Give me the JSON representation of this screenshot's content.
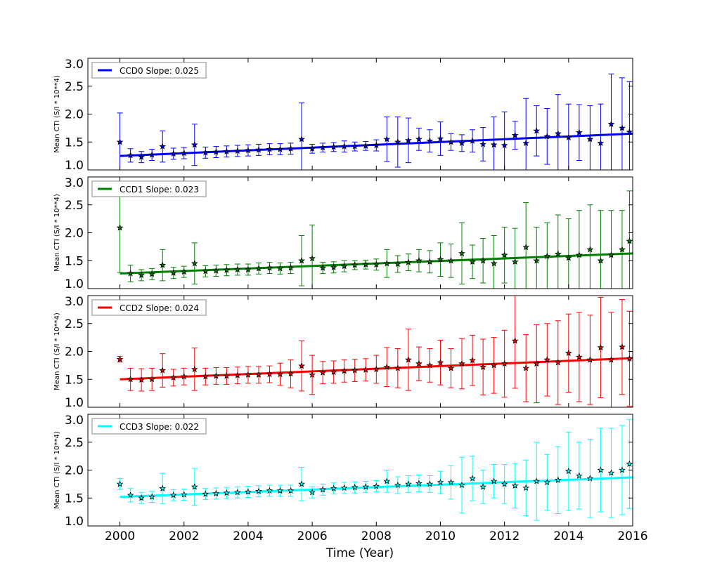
{
  "chart_data": {
    "type": "scatter",
    "xlabel": "Time (Year)",
    "ylabel": "Mean CTI (S/I * 10**4)",
    "xlim": [
      1999,
      2016
    ],
    "ylim": [
      1.0,
      3.0
    ],
    "xticks": [
      "2000",
      "2002",
      "2004",
      "2006",
      "2008",
      "2010",
      "2012",
      "2014",
      "2016"
    ],
    "yticks": [
      "1.0",
      "1.5",
      "2.0",
      "2.5",
      "3.0"
    ],
    "legend_position": "top-left",
    "marker_color": "#000000",
    "x": [
      2000.0,
      2000.33,
      2000.67,
      2001.0,
      2001.33,
      2001.67,
      2002.0,
      2002.33,
      2002.67,
      2003.0,
      2003.33,
      2003.67,
      2004.0,
      2004.33,
      2004.67,
      2005.0,
      2005.33,
      2005.67,
      2006.0,
      2006.33,
      2006.67,
      2007.0,
      2007.33,
      2007.67,
      2008.0,
      2008.33,
      2008.67,
      2009.0,
      2009.33,
      2009.67,
      2010.0,
      2010.33,
      2010.67,
      2011.0,
      2011.33,
      2011.67,
      2012.0,
      2012.33,
      2012.67,
      2013.0,
      2013.33,
      2013.67,
      2014.0,
      2014.33,
      2014.67,
      2015.0,
      2015.33,
      2015.67,
      2015.9
    ],
    "series": [
      {
        "name": "CCD0 Slope: 0.025",
        "color": "#0000ff",
        "fit": [
          1.25,
          1.65
        ],
        "y": [
          1.5,
          1.26,
          1.23,
          1.27,
          1.42,
          1.29,
          1.3,
          1.45,
          1.31,
          1.32,
          1.33,
          1.34,
          1.35,
          1.36,
          1.37,
          1.37,
          1.38,
          1.55,
          1.38,
          1.4,
          1.41,
          1.42,
          1.42,
          1.43,
          1.44,
          1.55,
          1.5,
          1.53,
          1.55,
          1.52,
          1.56,
          1.5,
          1.48,
          1.52,
          1.46,
          1.45,
          1.44,
          1.62,
          1.48,
          1.7,
          1.6,
          1.65,
          1.58,
          1.67,
          1.55,
          1.48,
          1.82,
          1.75,
          1.68
        ],
        "err": [
          0.52,
          0.12,
          0.1,
          0.1,
          0.28,
          0.1,
          0.1,
          0.37,
          0.1,
          0.1,
          0.1,
          0.1,
          0.1,
          0.1,
          0.1,
          0.1,
          0.1,
          0.65,
          0.08,
          0.08,
          0.08,
          0.1,
          0.08,
          0.08,
          0.1,
          0.4,
          0.45,
          0.4,
          0.2,
          0.2,
          0.3,
          0.15,
          0.15,
          0.2,
          0.3,
          0.5,
          0.6,
          0.25,
          0.8,
          0.45,
          0.5,
          0.7,
          0.6,
          0.5,
          0.6,
          0.7,
          0.9,
          0.9,
          0.9
        ]
      },
      {
        "name": "CCD1 Slope: 0.023",
        "color": "#008000",
        "fit": [
          1.27,
          1.63
        ],
        "y": [
          2.09,
          1.27,
          1.24,
          1.26,
          1.42,
          1.28,
          1.3,
          1.45,
          1.31,
          1.32,
          1.33,
          1.34,
          1.34,
          1.36,
          1.37,
          1.36,
          1.37,
          1.5,
          1.54,
          1.37,
          1.38,
          1.4,
          1.42,
          1.43,
          1.43,
          1.45,
          1.44,
          1.47,
          1.5,
          1.48,
          1.52,
          1.5,
          1.63,
          1.48,
          1.5,
          1.45,
          1.6,
          1.48,
          1.74,
          1.5,
          1.58,
          1.62,
          1.55,
          1.6,
          1.7,
          1.5,
          1.6,
          1.7,
          1.85
        ],
        "err": [
          0.8,
          0.15,
          0.1,
          0.1,
          0.28,
          0.1,
          0.1,
          0.37,
          0.1,
          0.1,
          0.1,
          0.1,
          0.1,
          0.1,
          0.1,
          0.1,
          0.1,
          0.45,
          0.6,
          0.1,
          0.1,
          0.1,
          0.08,
          0.08,
          0.1,
          0.25,
          0.15,
          0.15,
          0.2,
          0.2,
          0.3,
          0.3,
          0.55,
          0.3,
          0.4,
          0.5,
          0.5,
          0.6,
          0.8,
          0.6,
          0.6,
          0.7,
          0.7,
          0.8,
          0.8,
          0.9,
          0.8,
          0.7,
          0.9
        ]
      },
      {
        "name": "CCD2 Slope: 0.024",
        "color": "#ff0000",
        "fit": [
          1.5,
          1.88
        ],
        "y": [
          1.86,
          1.5,
          1.49,
          1.5,
          1.66,
          1.53,
          1.55,
          1.68,
          1.55,
          1.56,
          1.56,
          1.57,
          1.58,
          1.58,
          1.59,
          1.59,
          1.6,
          1.74,
          1.58,
          1.62,
          1.63,
          1.65,
          1.66,
          1.67,
          1.68,
          1.72,
          1.7,
          1.85,
          1.78,
          1.75,
          1.8,
          1.7,
          1.78,
          1.84,
          1.72,
          1.75,
          1.78,
          2.19,
          1.7,
          1.78,
          1.85,
          1.8,
          1.97,
          1.9,
          1.85,
          2.07,
          1.85,
          2.08,
          1.87
        ],
        "err": [
          0.05,
          0.2,
          0.2,
          0.2,
          0.3,
          0.15,
          0.15,
          0.38,
          0.15,
          0.15,
          0.15,
          0.15,
          0.15,
          0.15,
          0.15,
          0.2,
          0.25,
          0.45,
          0.35,
          0.2,
          0.2,
          0.2,
          0.2,
          0.2,
          0.25,
          0.35,
          0.35,
          0.55,
          0.3,
          0.3,
          0.4,
          0.35,
          0.45,
          0.45,
          0.5,
          0.5,
          0.6,
          0.85,
          0.6,
          0.7,
          0.65,
          0.75,
          0.7,
          0.8,
          0.8,
          0.9,
          0.85,
          0.85,
          0.85
        ]
      },
      {
        "name": "CCD3 Slope: 0.022",
        "color": "#00ffff",
        "fit": [
          1.52,
          1.87
        ],
        "y": [
          1.75,
          1.55,
          1.5,
          1.52,
          1.67,
          1.55,
          1.56,
          1.7,
          1.57,
          1.58,
          1.59,
          1.6,
          1.61,
          1.62,
          1.63,
          1.63,
          1.63,
          1.75,
          1.6,
          1.65,
          1.67,
          1.68,
          1.69,
          1.7,
          1.71,
          1.8,
          1.73,
          1.75,
          1.76,
          1.75,
          1.78,
          1.78,
          1.73,
          1.85,
          1.7,
          1.8,
          1.75,
          1.72,
          1.68,
          1.8,
          1.78,
          1.82,
          1.98,
          1.9,
          1.85,
          2.0,
          1.95,
          2.0,
          2.11
        ],
        "err": [
          0.1,
          0.12,
          0.1,
          0.1,
          0.27,
          0.1,
          0.1,
          0.33,
          0.1,
          0.1,
          0.1,
          0.1,
          0.1,
          0.1,
          0.1,
          0.1,
          0.1,
          0.3,
          0.1,
          0.1,
          0.1,
          0.1,
          0.1,
          0.1,
          0.1,
          0.2,
          0.15,
          0.15,
          0.15,
          0.15,
          0.2,
          0.3,
          0.5,
          0.4,
          0.3,
          0.3,
          0.35,
          0.4,
          0.5,
          0.7,
          0.5,
          0.6,
          0.7,
          0.6,
          0.7,
          0.75,
          0.8,
          0.8,
          0.8
        ]
      }
    ]
  }
}
